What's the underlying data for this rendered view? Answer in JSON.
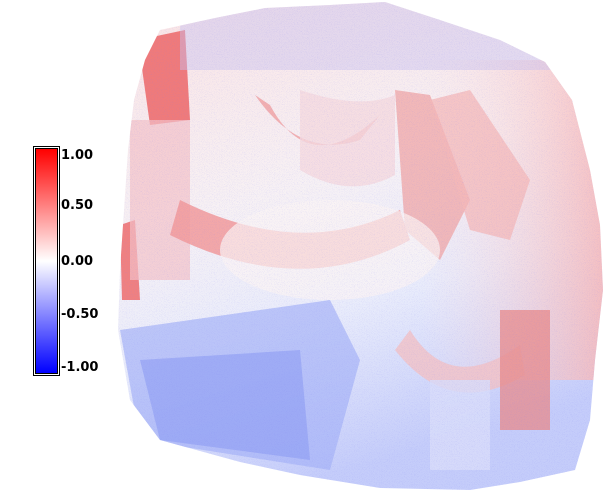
{
  "colorbar": {
    "min": -1.0,
    "max": 1.0,
    "tick_labels": [
      "1.00",
      "0.50",
      "0.00",
      "-0.50",
      "-1.00"
    ],
    "colors": {
      "high": "#ff0000",
      "mid": "#ffffff",
      "low": "#0000ff"
    }
  }
}
